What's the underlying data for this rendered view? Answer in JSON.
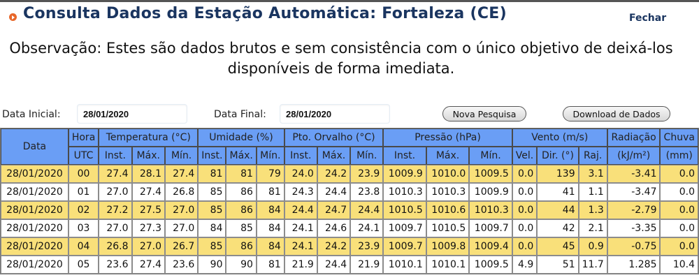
{
  "header": {
    "title": "Consulta Dados da Estação Automática: Fortaleza (CE)",
    "close_label": "Fechar"
  },
  "notice": "Observação: Estes são dados brutos e sem consistência com o único objetivo de deixá-los disponíveis de forma imediata.",
  "filters": {
    "start_label": "Data Inicial:",
    "start_value": "28/01/2020",
    "end_label": "Data Final:",
    "end_value": "28/01/2020",
    "new_search_label": "Nova Pesquisa",
    "download_label": "Download de Dados"
  },
  "colors": {
    "header_bg": "#6a9ef5",
    "row_highlight": "#f9e07a",
    "title": "#1a3560",
    "icon": "#e8672a"
  },
  "table": {
    "groups": [
      "Data",
      "Hora",
      "Temperatura (°C)",
      "Umidade (%)",
      "Pto. Orvalho (°C)",
      "Pressão (hPa)",
      "Vento (m/s)",
      "Radiação",
      "Chuva"
    ],
    "subheaders": [
      "UTC",
      "Inst.",
      "Máx.",
      "Mín.",
      "Inst.",
      "Máx.",
      "Mín.",
      "Inst.",
      "Máx.",
      "Mín.",
      "Inst.",
      "Máx.",
      "Mín.",
      "Vel.",
      "Dir. (°)",
      "Raj.",
      "(kJ/m²)",
      "(mm)"
    ],
    "rows": [
      [
        "28/01/2020",
        "00",
        "27.4",
        "28.1",
        "27.4",
        "81",
        "81",
        "79",
        "24.0",
        "24.2",
        "23.9",
        "1009.9",
        "1010.0",
        "1009.5",
        "0.0",
        "139",
        "3.1",
        "-3.41",
        "0.0"
      ],
      [
        "28/01/2020",
        "01",
        "27.0",
        "27.4",
        "26.8",
        "85",
        "86",
        "81",
        "24.3",
        "24.4",
        "23.8",
        "1010.3",
        "1010.3",
        "1009.9",
        "0.0",
        "41",
        "1.1",
        "-3.47",
        "0.0"
      ],
      [
        "28/01/2020",
        "02",
        "27.2",
        "27.5",
        "27.0",
        "85",
        "86",
        "84",
        "24.4",
        "24.7",
        "24.4",
        "1010.5",
        "1010.6",
        "1010.3",
        "0.0",
        "44",
        "1.3",
        "-2.79",
        "0.0"
      ],
      [
        "28/01/2020",
        "03",
        "27.0",
        "27.3",
        "27.0",
        "84",
        "85",
        "84",
        "24.1",
        "24.6",
        "24.1",
        "1009.7",
        "1010.5",
        "1009.7",
        "0.0",
        "42",
        "2.1",
        "-3.35",
        "0.0"
      ],
      [
        "28/01/2020",
        "04",
        "26.8",
        "27.0",
        "26.7",
        "85",
        "86",
        "84",
        "24.1",
        "24.2",
        "23.9",
        "1009.7",
        "1009.8",
        "1009.4",
        "0.0",
        "45",
        "0.9",
        "-0.75",
        "0.0"
      ],
      [
        "28/01/2020",
        "05",
        "23.6",
        "27.4",
        "23.6",
        "90",
        "90",
        "81",
        "21.9",
        "24.4",
        "21.9",
        "1010.1",
        "1010.1",
        "1009.5",
        "4.9",
        "51",
        "11.7",
        "1.285",
        "10.4"
      ]
    ]
  }
}
